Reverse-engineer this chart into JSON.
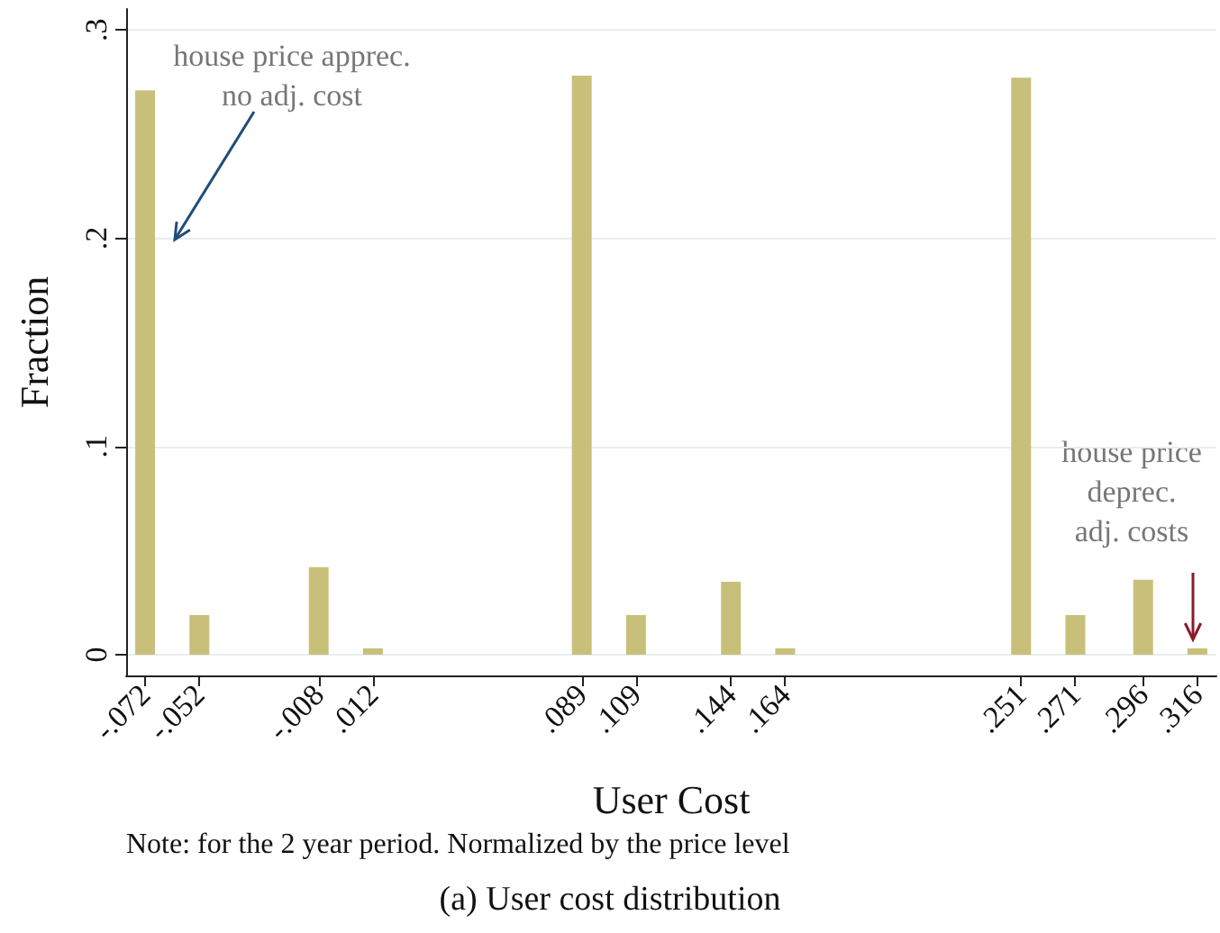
{
  "chart_data": {
    "type": "bar",
    "title": "(a) User cost distribution",
    "xlabel": "User Cost",
    "ylabel": "Fraction",
    "x": [
      -0.072,
      -0.052,
      -0.008,
      0.012,
      0.089,
      0.109,
      0.144,
      0.164,
      0.251,
      0.271,
      0.296,
      0.316
    ],
    "values": [
      0.271,
      0.019,
      0.042,
      0.003,
      0.278,
      0.019,
      0.035,
      0.003,
      0.277,
      0.019,
      0.036,
      0.003
    ],
    "color": "#c8c07a",
    "xlim": [
      -0.079,
      0.323
    ],
    "xticks": [
      {
        "value": -0.072,
        "label": "-.072"
      },
      {
        "value": -0.052,
        "label": "-.052"
      },
      {
        "value": -0.008,
        "label": "-.008"
      },
      {
        "value": 0.012,
        "label": ".012"
      },
      {
        "value": 0.089,
        "label": ".089"
      },
      {
        "value": 0.109,
        "label": ".109"
      },
      {
        "value": 0.144,
        "label": ".144"
      },
      {
        "value": 0.164,
        "label": ".164"
      },
      {
        "value": 0.251,
        "label": ".251"
      },
      {
        "value": 0.271,
        "label": ".271"
      },
      {
        "value": 0.296,
        "label": ".296"
      },
      {
        "value": 0.316,
        "label": ".316"
      }
    ],
    "ylim": [
      -0.01,
      0.31
    ],
    "yticks": [
      0,
      {
        "value": 0.1,
        "label": ".1"
      },
      {
        "value": 0.2,
        "label": ".2"
      },
      {
        "value": 0.3,
        "label": ".3"
      }
    ],
    "grid": "y",
    "annotations": [
      "house price apprec.\nno adj. cost",
      "house price\ndeprec.\nadj. costs",
      "Note: for the 2 year period. Normalized by the price level"
    ]
  }
}
